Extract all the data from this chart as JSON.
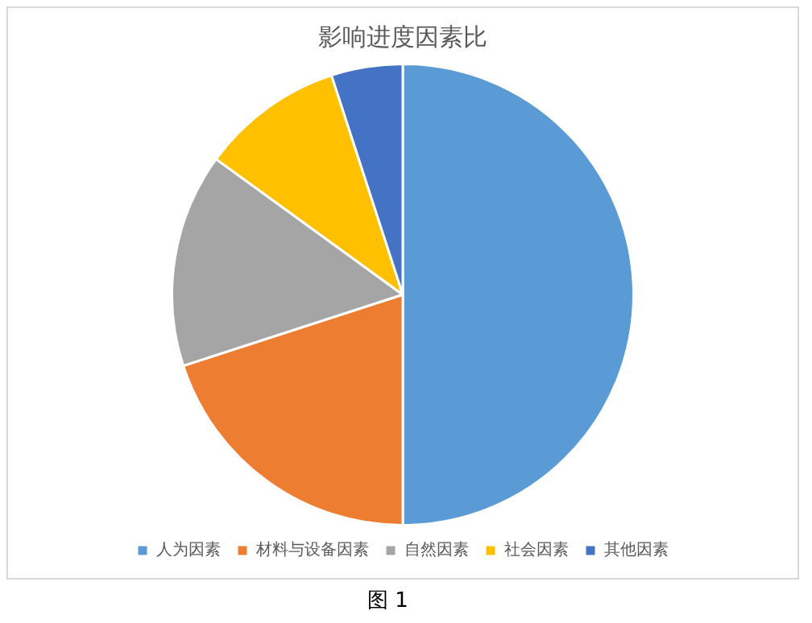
{
  "chart_data": {
    "type": "pie",
    "title": "影响进度因素比",
    "categories": [
      "人为因素",
      "材料与设备因素",
      "自然因素",
      "社会因素",
      "其他因素"
    ],
    "values": [
      50,
      20,
      15,
      10,
      5
    ],
    "colors": [
      "#5b9bd5",
      "#ed7d31",
      "#a5a5a5",
      "#ffc000",
      "#4472c4"
    ],
    "legend": "bottom",
    "annotations": [
      "图 1"
    ]
  }
}
